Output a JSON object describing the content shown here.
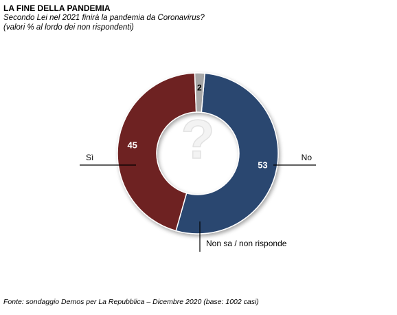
{
  "header": {
    "title": "LA FINE DELLA PANDEMIA",
    "subtitle_line1": "Secondo Lei nel 2021 finirà la pandemia da Coronavirus?",
    "subtitle_line2": "(valori % al lordo dei non rispondenti)"
  },
  "chart_data": {
    "type": "pie",
    "variant": "donut",
    "slices": [
      {
        "label": "Sì",
        "value": 53,
        "color": "#2b4670"
      },
      {
        "label": "No",
        "value": 45,
        "color": "#6e2222"
      },
      {
        "label": "Non sa / non risponde",
        "value": 2,
        "color": "#a7a7a7"
      }
    ],
    "center_icon": "question-mark-icon"
  },
  "footer": {
    "source": "Fonte: sondaggio Demos per La Repubblica – Dicembre 2020 (base: 1002 casi)"
  }
}
